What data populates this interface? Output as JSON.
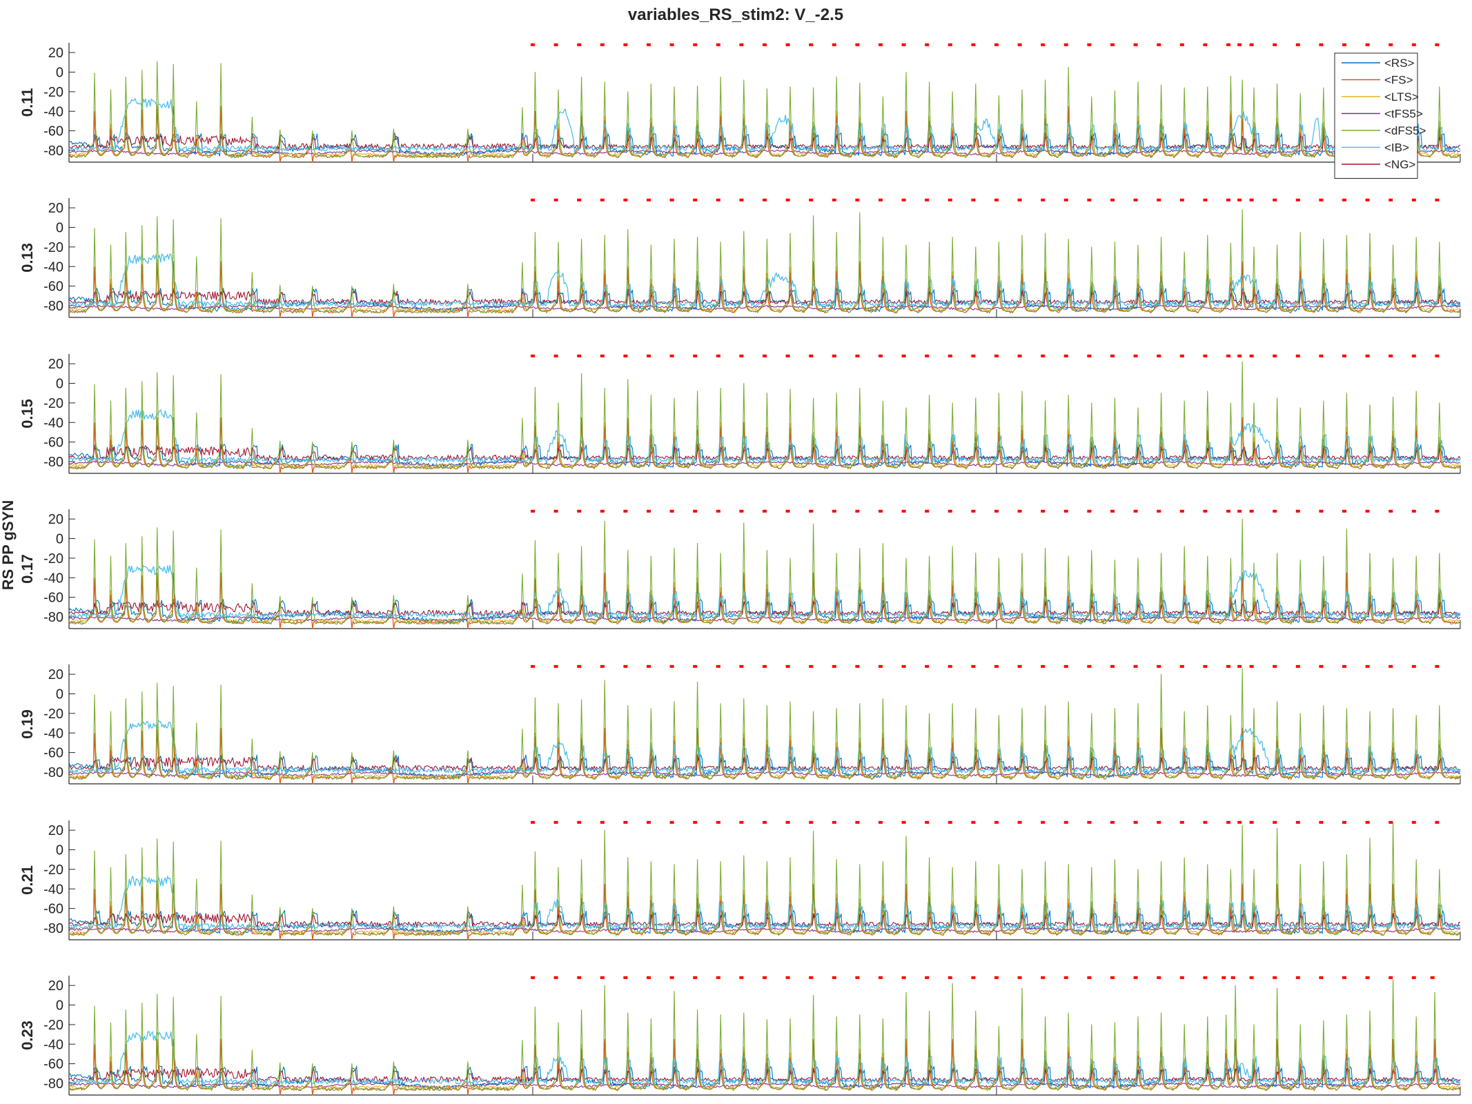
{
  "chart_data": {
    "type": "line",
    "title": "variables_RS_stim2: V_-2.5",
    "ylabel_group": "RS PP gSYN",
    "xlim": [
      0,
      1500
    ],
    "ylim": [
      -92,
      30
    ],
    "x_ticks": [
      0,
      500,
      1000,
      1500
    ],
    "y_ticks": [
      -80,
      -60,
      -40,
      -20,
      0,
      20
    ],
    "legend": {
      "placement": "top-right",
      "in_panel": 0
    },
    "series": [
      {
        "name": "<RS>",
        "color": "#0072BD"
      },
      {
        "name": "<FS>",
        "color": "#D95319"
      },
      {
        "name": "<LTS>",
        "color": "#EDB120"
      },
      {
        "name": "<tFS5>",
        "color": "#7E2F8E"
      },
      {
        "name": "<dFS5>",
        "color": "#77AC30"
      },
      {
        "name": "<IB>",
        "color": "#4DBEEE"
      },
      {
        "name": "<NG>",
        "color": "#A2142F"
      }
    ],
    "stimulus_marker": {
      "color": "#FF0000",
      "y": 28,
      "start": 500,
      "end": 1500,
      "period": 25
    },
    "pre_stim_spikes": [
      {
        "t": 27,
        "peak": -1
      },
      {
        "t": 44,
        "peak": -18
      },
      {
        "t": 61,
        "peak": -5
      },
      {
        "t": 78,
        "peak": 2
      },
      {
        "t": 95,
        "peak": 11
      },
      {
        "t": 112,
        "peak": 8
      },
      {
        "t": 137,
        "peak": -30
      },
      {
        "t": 163,
        "peak": 9
      },
      {
        "t": 197,
        "peak": -46
      },
      {
        "t": 227,
        "peak": -59
      },
      {
        "t": 262,
        "peak": -60
      },
      {
        "t": 305,
        "peak": -60
      },
      {
        "t": 350,
        "peak": -58
      },
      {
        "t": 430,
        "peak": -58
      },
      {
        "t": 488,
        "peak": -36
      }
    ],
    "panels": [
      {
        "label": "0.11",
        "spike_peaks": [
          0,
          -18,
          -5,
          -10,
          -20,
          -12,
          -15,
          -14,
          -5,
          -8,
          -17,
          -15,
          -16,
          -5,
          -11,
          -25,
          0,
          -10,
          -20,
          -12,
          -24,
          -18,
          -8,
          5,
          -25,
          -19,
          -10,
          -13,
          -16,
          -15,
          -4,
          -8,
          -16,
          -12,
          -22,
          -16,
          -10,
          -8,
          -5,
          -24,
          -15
        ],
        "ib_bursts": [
          {
            "start": 520,
            "end": 545,
            "level": -40
          },
          {
            "start": 755,
            "end": 785,
            "level": -48
          },
          {
            "start": 975,
            "end": 1000,
            "level": -52
          },
          {
            "start": 1250,
            "end": 1280,
            "level": -44
          },
          {
            "start": 1340,
            "end": 1350,
            "level": -50
          }
        ],
        "stim_times": [
          500,
          525,
          550,
          575,
          600,
          625,
          650,
          675,
          700,
          725,
          750,
          775,
          800,
          825,
          850,
          875,
          900,
          925,
          950,
          975,
          1000,
          1025,
          1050,
          1075,
          1100,
          1125,
          1150,
          1175,
          1200,
          1225,
          1250,
          1262,
          1275,
          1300,
          1325,
          1350,
          1375,
          1400,
          1425,
          1450,
          1475
        ]
      },
      {
        "label": "0.13",
        "spike_peaks": [
          -5,
          -15,
          -12,
          -8,
          -2,
          -18,
          -12,
          -10,
          -15,
          -4,
          -12,
          -6,
          12,
          -5,
          15,
          -10,
          -18,
          -15,
          -10,
          -20,
          -15,
          -8,
          -6,
          -12,
          -20,
          -15,
          -18,
          -10,
          -25,
          -8,
          -16,
          18,
          -20,
          -18,
          -5,
          -12,
          -8,
          -6,
          -18,
          -10,
          -15
        ],
        "ib_bursts": [
          {
            "start": 515,
            "end": 540,
            "level": -45
          },
          {
            "start": 745,
            "end": 790,
            "level": -50
          },
          {
            "start": 1250,
            "end": 1285,
            "level": -52
          }
        ],
        "stim_times": [
          500,
          525,
          550,
          575,
          600,
          625,
          650,
          675,
          700,
          725,
          750,
          775,
          800,
          825,
          850,
          875,
          900,
          925,
          950,
          975,
          1000,
          1025,
          1050,
          1075,
          1100,
          1125,
          1150,
          1175,
          1200,
          1225,
          1250,
          1262,
          1275,
          1300,
          1325,
          1350,
          1375,
          1400,
          1425,
          1450,
          1475
        ]
      },
      {
        "label": "0.15",
        "spike_peaks": [
          -4,
          -20,
          10,
          -5,
          4,
          -12,
          -15,
          -8,
          -5,
          0,
          -10,
          -6,
          -15,
          -10,
          -5,
          -18,
          -25,
          -12,
          -20,
          -15,
          -10,
          -8,
          -18,
          -12,
          -20,
          -15,
          -25,
          -10,
          -18,
          -8,
          -20,
          22,
          -20,
          -15,
          -25,
          -18,
          -10,
          -22,
          -14,
          -8,
          -20
        ],
        "ib_bursts": [
          {
            "start": 515,
            "end": 540,
            "level": -50
          },
          {
            "start": 1250,
            "end": 1300,
            "level": -45
          }
        ],
        "stim_times": [
          500,
          525,
          550,
          575,
          600,
          625,
          650,
          675,
          700,
          725,
          750,
          775,
          800,
          825,
          850,
          875,
          900,
          925,
          950,
          975,
          1000,
          1025,
          1050,
          1075,
          1100,
          1125,
          1150,
          1175,
          1200,
          1225,
          1250,
          1262,
          1275,
          1300,
          1325,
          1350,
          1375,
          1400,
          1425,
          1450,
          1475
        ]
      },
      {
        "label": "0.17",
        "spike_peaks": [
          -2,
          -15,
          -8,
          18,
          -12,
          -18,
          -10,
          -5,
          -15,
          16,
          -12,
          -20,
          15,
          -15,
          -10,
          -5,
          -20,
          -18,
          -8,
          -15,
          -20,
          -15,
          -10,
          -18,
          -12,
          -22,
          -20,
          -15,
          -8,
          -18,
          -20,
          20,
          -25,
          -15,
          -22,
          -18,
          10,
          -15,
          -20,
          -18,
          -15
        ],
        "ib_bursts": [
          {
            "start": 515,
            "end": 540,
            "level": -55
          },
          {
            "start": 1250,
            "end": 1295,
            "level": -35
          }
        ],
        "stim_times": [
          500,
          525,
          550,
          575,
          600,
          625,
          650,
          675,
          700,
          725,
          750,
          775,
          800,
          825,
          850,
          875,
          900,
          925,
          950,
          975,
          1000,
          1025,
          1050,
          1075,
          1100,
          1125,
          1150,
          1175,
          1200,
          1225,
          1250,
          1262,
          1275,
          1300,
          1325,
          1350,
          1375,
          1400,
          1425,
          1450,
          1475
        ]
      },
      {
        "label": "0.19",
        "spike_peaks": [
          -4,
          -10,
          -6,
          14,
          -12,
          -15,
          -8,
          12,
          -10,
          -5,
          -12,
          -8,
          -18,
          -15,
          -10,
          -5,
          -12,
          -20,
          -10,
          -15,
          -22,
          -15,
          -12,
          -8,
          -20,
          -15,
          -10,
          20,
          -18,
          -12,
          -22,
          26,
          -15,
          -8,
          -20,
          -12,
          -15,
          -18,
          -15,
          -22,
          -12
        ],
        "ib_bursts": [
          {
            "start": 515,
            "end": 540,
            "level": -50
          },
          {
            "start": 1250,
            "end": 1295,
            "level": -38
          }
        ],
        "stim_times": [
          500,
          525,
          550,
          575,
          600,
          625,
          650,
          675,
          700,
          725,
          750,
          775,
          800,
          825,
          850,
          875,
          900,
          925,
          950,
          975,
          1000,
          1025,
          1050,
          1075,
          1100,
          1125,
          1150,
          1175,
          1200,
          1225,
          1250,
          1262,
          1275,
          1300,
          1325,
          1350,
          1375,
          1400,
          1425,
          1450,
          1475
        ]
      },
      {
        "label": "0.21",
        "spike_peaks": [
          -2,
          -18,
          -10,
          20,
          -8,
          -12,
          -15,
          -10,
          -12,
          -6,
          -12,
          -8,
          19,
          -10,
          -15,
          -12,
          14,
          -8,
          -18,
          -12,
          -15,
          -20,
          -12,
          -15,
          -18,
          -10,
          -20,
          -12,
          -8,
          -15,
          -20,
          25,
          -20,
          22,
          -15,
          -12,
          -5,
          12,
          28,
          -10,
          -20
        ],
        "ib_bursts": [
          {
            "start": 515,
            "end": 535,
            "level": -55
          }
        ],
        "stim_times": [
          500,
          525,
          550,
          575,
          600,
          625,
          650,
          675,
          700,
          725,
          750,
          775,
          800,
          825,
          850,
          875,
          900,
          925,
          950,
          975,
          1000,
          1025,
          1050,
          1075,
          1100,
          1125,
          1150,
          1175,
          1200,
          1225,
          1250,
          1262,
          1275,
          1300,
          1325,
          1350,
          1375,
          1400,
          1425,
          1450,
          1475
        ]
      },
      {
        "label": "0.23",
        "spike_peaks": [
          -2,
          -18,
          -5,
          20,
          -8,
          -14,
          14,
          -5,
          -10,
          -8,
          -15,
          -14,
          10,
          -12,
          -10,
          -14,
          13,
          -6,
          22,
          -6,
          -22,
          17,
          -12,
          -8,
          -20,
          -18,
          -12,
          -8,
          -20,
          -12,
          -10,
          20,
          -20,
          17,
          -20,
          -16,
          -10,
          -6,
          26,
          -12,
          13
        ],
        "ib_bursts": [
          {
            "start": 515,
            "end": 540,
            "level": -55
          },
          {
            "start": 1245,
            "end": 1275,
            "level": -62
          }
        ],
        "stim_times": [
          500,
          525,
          550,
          575,
          600,
          625,
          650,
          675,
          700,
          725,
          750,
          775,
          800,
          825,
          850,
          875,
          900,
          925,
          950,
          975,
          1000,
          1025,
          1050,
          1075,
          1100,
          1125,
          1150,
          1175,
          1200,
          1225,
          1245,
          1255,
          1275,
          1300,
          1325,
          1350,
          1375,
          1400,
          1425,
          1450,
          1470
        ]
      }
    ]
  }
}
